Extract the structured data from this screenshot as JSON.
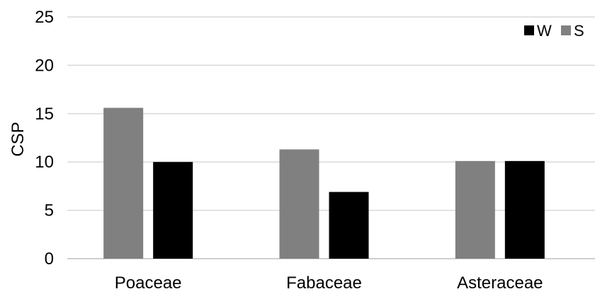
{
  "chart_data": {
    "type": "bar",
    "categories": [
      "Poaceae",
      "Fabaceae",
      "Asteraceae"
    ],
    "series": [
      {
        "name": "S",
        "color": "#808080",
        "values": [
          15.6,
          11.3,
          10.1
        ]
      },
      {
        "name": "W",
        "color": "#000000",
        "values": [
          10.0,
          6.9,
          10.1
        ]
      }
    ],
    "ylabel": "CSP",
    "xlabel": "",
    "title": "",
    "ylim": [
      0,
      25
    ],
    "yticks": [
      0,
      5,
      10,
      15,
      20,
      25
    ],
    "legend_order": [
      "W",
      "S"
    ],
    "legend_position": "top-right",
    "grid": true,
    "grid_color": "#d9d9d9"
  }
}
